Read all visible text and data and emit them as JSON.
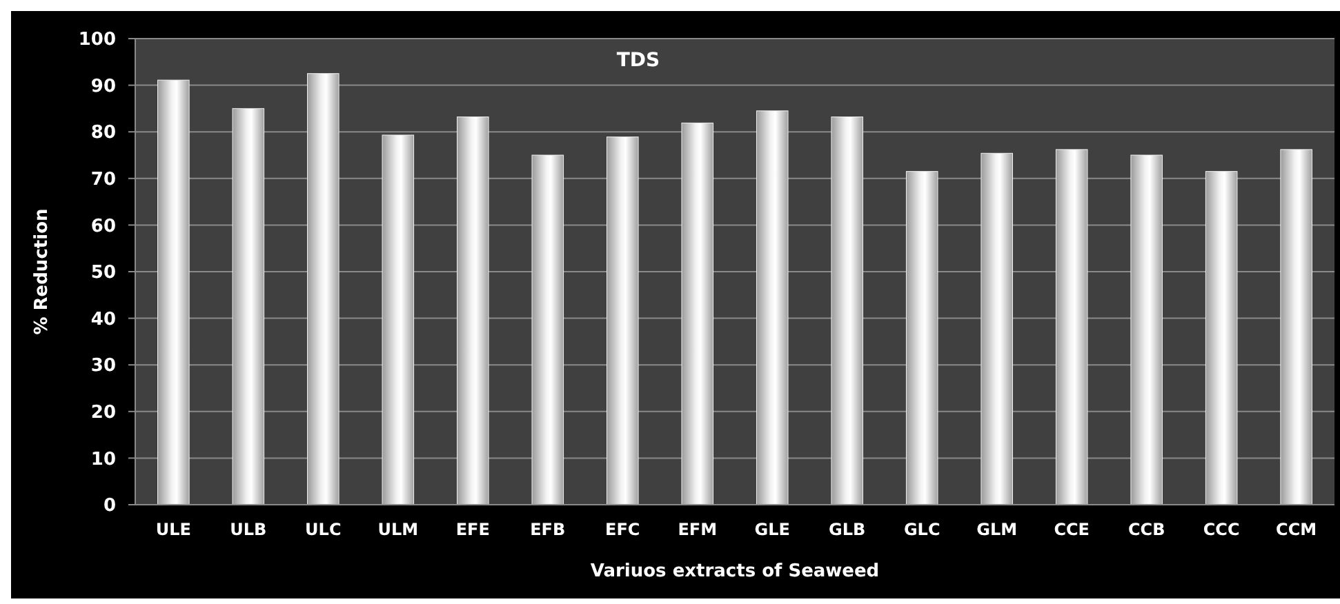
{
  "chart_data": {
    "type": "bar",
    "title": "TDS",
    "xlabel": "Variuos extracts of Seaweed",
    "ylabel": "% Reduction",
    "categories": [
      "ULE",
      "ULB",
      "ULC",
      "ULM",
      "EFE",
      "EFB",
      "EFC",
      "EFM",
      "GLE",
      "GLB",
      "GLC",
      "GLM",
      "CCE",
      "CCB",
      "CCC",
      "CCM"
    ],
    "values": [
      91.1,
      85,
      92.5,
      79.3,
      83.2,
      75,
      78.9,
      81.9,
      84.5,
      83.2,
      71.5,
      75.4,
      76.2,
      75,
      71.5,
      76.2
    ],
    "color": "#f2f2f2",
    "ylim": [
      0,
      100
    ],
    "yticks": [
      0,
      10,
      20,
      30,
      40,
      50,
      60,
      70,
      80,
      90,
      100
    ],
    "grid": "y"
  }
}
